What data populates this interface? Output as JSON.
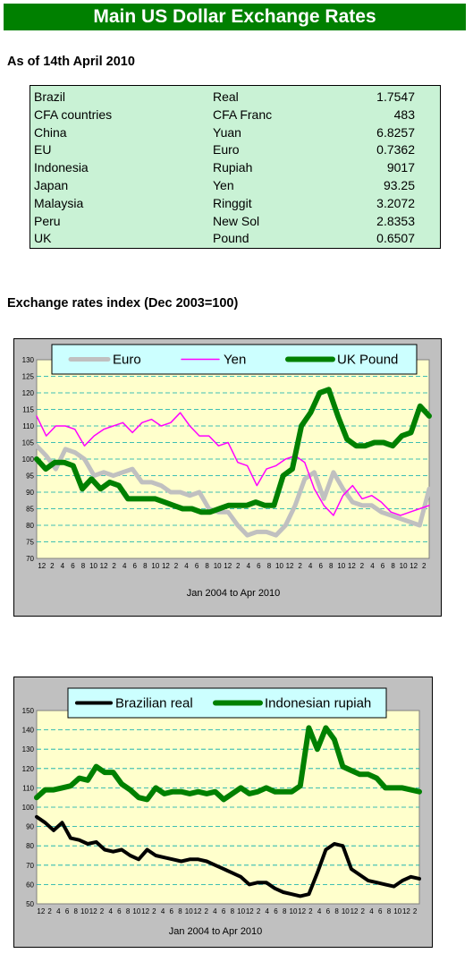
{
  "title": "Main US Dollar Exchange Rates",
  "date_heading": "As of 14th April 2010",
  "rates": [
    {
      "country": "Brazil",
      "currency": "Real",
      "rate": "1.7547"
    },
    {
      "country": "CFA countries",
      "currency": "CFA Franc",
      "rate": "483"
    },
    {
      "country": "China",
      "currency": "Yuan",
      "rate": "6.8257"
    },
    {
      "country": "EU",
      "currency": "Euro",
      "rate": "0.7362"
    },
    {
      "country": "Indonesia",
      "currency": "Rupiah",
      "rate": "9017"
    },
    {
      "country": "Japan",
      "currency": "Yen",
      "rate": "93.25"
    },
    {
      "country": "Malaysia",
      "currency": "Ringgit",
      "rate": "3.2072"
    },
    {
      "country": "Peru",
      "currency": "New Sol",
      "rate": "2.8353"
    },
    {
      "country": "UK",
      "currency": "Pound",
      "rate": "0.6507"
    }
  ],
  "index_heading": "Exchange rates index (Dec 2003=100)",
  "colors": {
    "title_bg": "#008000",
    "table_bg": "#c9f2d5",
    "plot_bg": "#ffffcc",
    "frame": "#c0c0c0",
    "legend_bg": "#ccffff",
    "grid": "#00aaaa"
  },
  "chart_data": [
    {
      "type": "line",
      "xlabel": "Jan 2004  to Apr 2010",
      "ylim": [
        70,
        130
      ],
      "yticks": [
        70,
        75,
        80,
        85,
        90,
        95,
        100,
        105,
        110,
        115,
        120,
        125,
        130
      ],
      "xticks": [
        "12",
        "2",
        "4",
        "6",
        "8",
        "10",
        "12",
        "2",
        "4",
        "6",
        "8",
        "10",
        "12",
        "2",
        "4",
        "6",
        "8",
        "10",
        "12",
        "2",
        "4",
        "6",
        "8",
        "10",
        "12",
        "2",
        "4",
        "6",
        "8",
        "10",
        "12",
        "2",
        "4",
        "6",
        "8",
        "10",
        "12",
        "2"
      ],
      "grid": true,
      "legend": "top",
      "series": [
        {
          "name": "Euro",
          "color": "#c0c0c0",
          "values": [
            104,
            101,
            97,
            103,
            102,
            100,
            95,
            96,
            95,
            96,
            97,
            93,
            93,
            92,
            90,
            90,
            89,
            90,
            85,
            84,
            84,
            80,
            77,
            78,
            78,
            77,
            80,
            86,
            94,
            96,
            88,
            96,
            91,
            87,
            86,
            86,
            84,
            83,
            82,
            81,
            80,
            91
          ]
        },
        {
          "name": "Yen",
          "color": "#ff00ff",
          "values": [
            113,
            107,
            110,
            110,
            109,
            104,
            107,
            109,
            110,
            111,
            108,
            111,
            112,
            110,
            111,
            114,
            110,
            107,
            107,
            104,
            105,
            99,
            98,
            92,
            97,
            98,
            100,
            101,
            99,
            91,
            86,
            83,
            89,
            92,
            88,
            89,
            87,
            84,
            83,
            84,
            85,
            86
          ]
        },
        {
          "name": "UK Pound",
          "color": "#008000",
          "values": [
            100,
            97,
            99,
            99,
            98,
            91,
            94,
            91,
            93,
            92,
            88,
            88,
            88,
            88,
            87,
            86,
            85,
            85,
            84,
            84,
            85,
            86,
            86,
            86,
            87,
            86,
            86,
            95,
            97,
            110,
            114,
            120,
            121,
            113,
            106,
            104,
            104,
            105,
            105,
            104,
            107,
            108,
            116,
            113
          ]
        }
      ]
    },
    {
      "type": "line",
      "xlabel": "Jan 2004  to Apr  2010",
      "ylim": [
        50,
        150
      ],
      "yticks": [
        50,
        60,
        70,
        80,
        90,
        100,
        110,
        120,
        130,
        140,
        150
      ],
      "xticks": [
        "12",
        "2",
        "4",
        "6",
        "8",
        "10",
        "12",
        "2",
        "4",
        "6",
        "8",
        "10",
        "12",
        "2",
        "4",
        "6",
        "8",
        "10",
        "12",
        "2",
        "4",
        "6",
        "8",
        "10",
        "12",
        "2",
        "4",
        "6",
        "8",
        "10",
        "12",
        "2",
        "4",
        "6",
        "8",
        "10",
        "12",
        "2",
        "4",
        "6",
        "8",
        "10",
        "12",
        "2"
      ],
      "grid": true,
      "legend": "top",
      "series": [
        {
          "name": "Brazilian real",
          "color": "#000000",
          "values": [
            95,
            92,
            88,
            92,
            84,
            83,
            81,
            82,
            78,
            77,
            78,
            75,
            73,
            78,
            75,
            74,
            73,
            72,
            73,
            73,
            72,
            70,
            68,
            66,
            64,
            60,
            61,
            61,
            58,
            56,
            55,
            54,
            55,
            66,
            78,
            81,
            80,
            68,
            65,
            62,
            61,
            60,
            59,
            62,
            64,
            63
          ]
        },
        {
          "name": "Indonesian rupiah",
          "color": "#008000",
          "values": [
            105,
            109,
            109,
            110,
            111,
            115,
            114,
            121,
            118,
            118,
            112,
            109,
            105,
            104,
            110,
            107,
            108,
            108,
            107,
            108,
            107,
            108,
            104,
            107,
            110,
            107,
            108,
            110,
            108,
            108,
            108,
            111,
            141,
            130,
            141,
            135,
            121,
            119,
            117,
            117,
            115,
            110,
            110,
            110,
            109,
            108
          ]
        }
      ]
    }
  ]
}
